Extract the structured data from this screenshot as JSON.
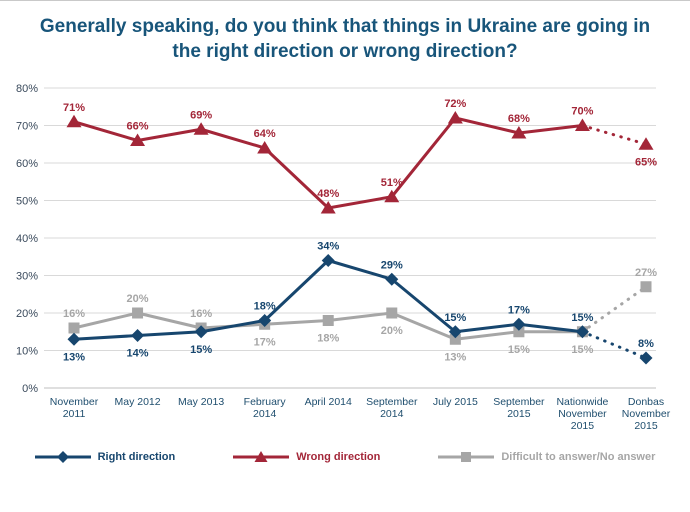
{
  "title": "Generally speaking, do you think that things in Ukraine are going in the right direction or wrong direction?",
  "colors": {
    "right_direction": "#17466e",
    "wrong_direction": "#a32638",
    "difficult": "#a6a6a6",
    "title_text": "#18557a",
    "axis_text": "#1f4e6e",
    "gridline": "#d9d9d9",
    "axis_line": "#bfbfbf"
  },
  "chart_data": {
    "type": "line",
    "title": "Generally speaking, do you think that things in Ukraine are going in the right direction or wrong direction?",
    "xlabel": "",
    "ylabel": "",
    "categories": [
      "November\n2011",
      "May 2012",
      "May 2013",
      "February\n2014",
      "April 2014",
      "September\n2014",
      "July 2015",
      "September\n2015",
      "Nationwide\nNovember\n2015",
      "Donbas\nNovember\n2015"
    ],
    "series": [
      {
        "name": "Right direction",
        "color": "#17466e",
        "marker": "diamond",
        "values": [
          13,
          14,
          15,
          18,
          34,
          29,
          15,
          17,
          15,
          8
        ],
        "label_pos": [
          "below",
          "below",
          "below",
          "above",
          "above",
          "above",
          "above",
          "above",
          "above",
          "above"
        ]
      },
      {
        "name": "Wrong direction",
        "color": "#a32638",
        "marker": "triangle",
        "values": [
          71,
          66,
          69,
          64,
          48,
          51,
          72,
          68,
          70,
          65
        ],
        "label_pos": [
          "above",
          "above",
          "above",
          "above",
          "above",
          "above",
          "above",
          "above",
          "above",
          "below"
        ]
      },
      {
        "name": "Difficult to answer/No answer",
        "color": "#a6a6a6",
        "marker": "square",
        "values": [
          16,
          20,
          16,
          17,
          18,
          20,
          13,
          15,
          15,
          27
        ],
        "label_pos": [
          "above",
          "above",
          "above",
          "below",
          "below",
          "below",
          "below",
          "below",
          "below",
          "above"
        ]
      }
    ],
    "ylim": [
      0,
      80
    ],
    "ytick_step": 10,
    "ytick_labels": [
      "0%",
      "10%",
      "20%",
      "30%",
      "40%",
      "50%",
      "60%",
      "70%",
      "80%"
    ],
    "value_suffix": "%",
    "grid": true,
    "legend_position": "bottom",
    "dotted_last_segment": true
  },
  "legend": {
    "items": [
      {
        "label": "Right direction",
        "color": "#17466e",
        "marker": "diamond"
      },
      {
        "label": "Wrong direction",
        "color": "#a32638",
        "marker": "triangle"
      },
      {
        "label": "Difficult to answer/No answer",
        "color": "#a6a6a6",
        "marker": "square"
      }
    ]
  }
}
